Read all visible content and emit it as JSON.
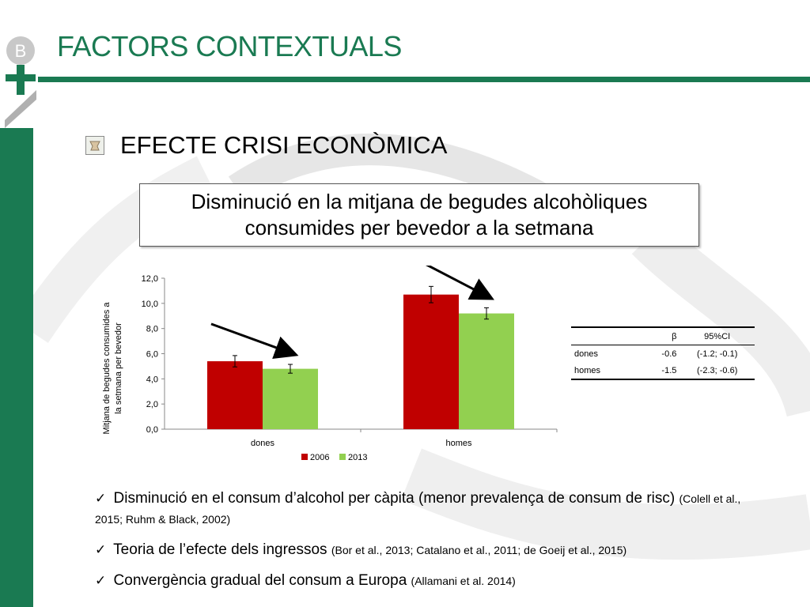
{
  "slide": {
    "title": "FACTORS CONTEXTUALS",
    "subtitle": "EFECTE CRISI ECONÒMICA",
    "callout_line1": "Disminució en la mitjana de begudes alcohòliques",
    "callout_line2": "consumides per bevedor a la setmana"
  },
  "colors": {
    "brand": "#1a7a52",
    "series_2006": "#c00000",
    "series_2013": "#92d050"
  },
  "chart_data": {
    "type": "bar",
    "categories": [
      "dones",
      "homes"
    ],
    "series": [
      {
        "name": "2006",
        "values": [
          5.4,
          10.7
        ],
        "error": [
          0.45,
          0.65
        ]
      },
      {
        "name": "2013",
        "values": [
          4.8,
          9.2
        ],
        "error": [
          0.35,
          0.45
        ]
      }
    ],
    "ylabel_line1": "Mitjana de begudes consumides a",
    "ylabel_line2": "la setmana per bevedor",
    "ylim": [
      0,
      12
    ],
    "yticks": [
      "0,0",
      "2,0",
      "4,0",
      "6,0",
      "8,0",
      "10,0",
      "12,0"
    ],
    "legend_position": "bottom",
    "annotations": "downward arrows from 2006 bar to 2013 bar in each group"
  },
  "stats_table": {
    "headers": [
      "",
      "β",
      "95%CI"
    ],
    "rows": [
      {
        "group": "dones",
        "beta": "-0.6",
        "ci": "(-1.2; -0.1)"
      },
      {
        "group": "homes",
        "beta": "-1.5",
        "ci": "(-2.3; -0.6)"
      }
    ]
  },
  "points": [
    {
      "check": "✓",
      "text": " Disminució en el consum d’alcohol per càpita (menor prevalença de consum de risc) ",
      "ref": "(Colell et al., 2015; Ruhm & Black, 2002)"
    },
    {
      "check": "✓",
      "text": " Teoria de l’efecte dels ingressos ",
      "ref": "(Bor et al., 2013; Catalano et al., 2011; de Goeij et al., 2015)"
    },
    {
      "check": "✓",
      "text": " Convergència gradual del consum a Europa ",
      "ref": "(Allamani et al. 2014)"
    }
  ],
  "icons": {
    "logo": "bcn-plus-logo",
    "bullet": "picture-bullet-icon"
  }
}
